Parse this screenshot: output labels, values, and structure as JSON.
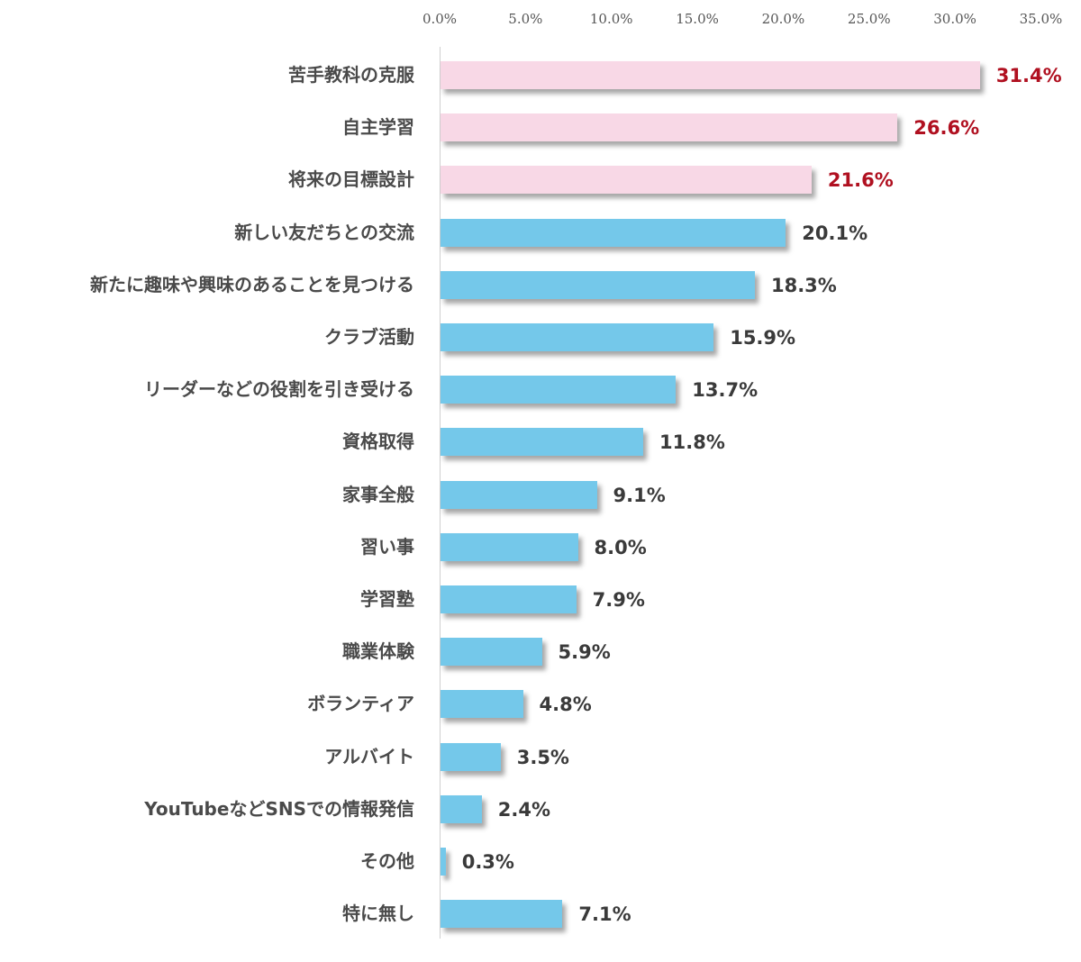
{
  "chart_data": {
    "type": "bar",
    "orientation": "horizontal",
    "title": "",
    "xlabel": "",
    "ylabel": "",
    "xlim": [
      0,
      35
    ],
    "x_ticks": [
      "0.0%",
      "5.0%",
      "10.0%",
      "15.0%",
      "20.0%",
      "25.0%",
      "30.0%",
      "35.0%"
    ],
    "tick_values": [
      0,
      5,
      10,
      15,
      20,
      25,
      30,
      35
    ],
    "grid": false,
    "legend": null,
    "categories": [
      "苦手教科の克服",
      "自主学習",
      "将来の目標設計",
      "新しい友だちとの交流",
      "新たに趣味や興味のあることを見つける",
      "クラブ活動",
      "リーダーなどの役割を引き受ける",
      "資格取得",
      "家事全般",
      "習い事",
      "学習塾",
      "職業体験",
      "ボランティア",
      "アルバイト",
      "YouTubeなどSNSでの情報発信",
      "その他",
      "特に無し"
    ],
    "values": [
      31.4,
      26.6,
      21.6,
      20.1,
      18.3,
      15.9,
      13.7,
      11.8,
      9.1,
      8.0,
      7.9,
      5.9,
      4.8,
      3.5,
      2.4,
      0.3,
      7.1
    ],
    "value_labels": [
      "31.4%",
      "26.6%",
      "21.6%",
      "20.1%",
      "18.3%",
      "15.9%",
      "13.7%",
      "11.8%",
      "9.1%",
      "8.0%",
      "7.9%",
      "5.9%",
      "4.8%",
      "3.5%",
      "2.4%",
      "0.3%",
      "7.1%"
    ],
    "highlighted_top_n": 3,
    "colors": {
      "highlight_bar": "#f8d8e6",
      "normal_bar": "#74c8ea",
      "highlight_label": "#b01020",
      "normal_label": "#3a3a3a",
      "category_text": "#4a4a4a",
      "tick_text": "#555555"
    }
  }
}
